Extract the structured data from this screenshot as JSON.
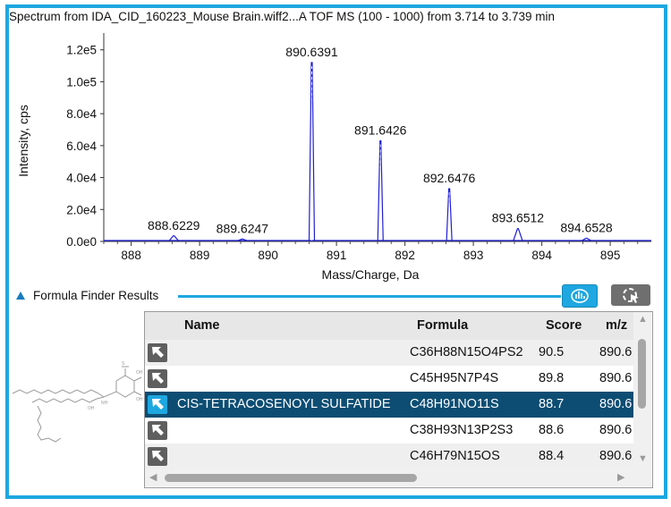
{
  "chart_title": "Spectrum from IDA_CID_160223_Mouse Brain.wiff2...A TOF MS (100 - 1000) from 3.714 to 3.739 min",
  "chart_data": {
    "type": "line",
    "title": "Spectrum from IDA_CID_160223_Mouse Brain.wiff2...A TOF MS (100 - 1000) from 3.714 to 3.739 min",
    "xlabel": "Mass/Charge, Da",
    "ylabel": "Intensity, cps",
    "xlim": [
      887.6,
      895.6
    ],
    "ylim": [
      0,
      126000
    ],
    "x_ticks": [
      "888",
      "889",
      "890",
      "891",
      "892",
      "893",
      "894",
      "895"
    ],
    "y_ticks": [
      "0.0e0",
      "2.0e4",
      "4.0e4",
      "6.0e4",
      "8.0e4",
      "1.0e5",
      "1.2e5"
    ],
    "grid": false,
    "peaks": [
      {
        "mz": 888.6229,
        "intensity": 3500,
        "label": "888.6229"
      },
      {
        "mz": 889.6247,
        "intensity": 1500,
        "label": "889.6247"
      },
      {
        "mz": 890.6391,
        "intensity": 112000,
        "label": "890.6391"
      },
      {
        "mz": 891.6426,
        "intensity": 63000,
        "label": "891.6426"
      },
      {
        "mz": 892.6476,
        "intensity": 33000,
        "label": "892.6476"
      },
      {
        "mz": 893.6512,
        "intensity": 8000,
        "label": "893.6512"
      },
      {
        "mz": 894.6528,
        "intensity": 2000,
        "label": "894.6528"
      }
    ],
    "line_color": "#1f1fd6"
  },
  "formula_finder": {
    "title": "Formula Finder Results",
    "columns": {
      "name": "Name",
      "formula": "Formula",
      "score": "Score",
      "mz": "m/z"
    },
    "rows": [
      {
        "name": "",
        "formula": "C36H88N15O4PS2",
        "score": "90.5",
        "mz": "890.6"
      },
      {
        "name": "",
        "formula": "C45H95N7P4S",
        "score": "89.8",
        "mz": "890.6"
      },
      {
        "name": "CIS-TETRACOSENOYL SULFATIDE",
        "formula": "C48H91NO11S",
        "score": "88.7",
        "mz": "890.6"
      },
      {
        "name": "",
        "formula": "C38H93N13P2S3",
        "score": "88.6",
        "mz": "890.6"
      },
      {
        "name": "",
        "formula": "C46H79N15OS",
        "score": "88.4",
        "mz": "890.6"
      }
    ],
    "selected_row": 2
  },
  "colors": {
    "accent": "#1ea7e0",
    "selected_row": "#0d4d73",
    "spectrum": "#1f1fd6"
  },
  "icons": [
    "peak-finder-icon",
    "search-cursor-icon",
    "row-link-arrow-icon",
    "triangle-collapse-icon"
  ]
}
